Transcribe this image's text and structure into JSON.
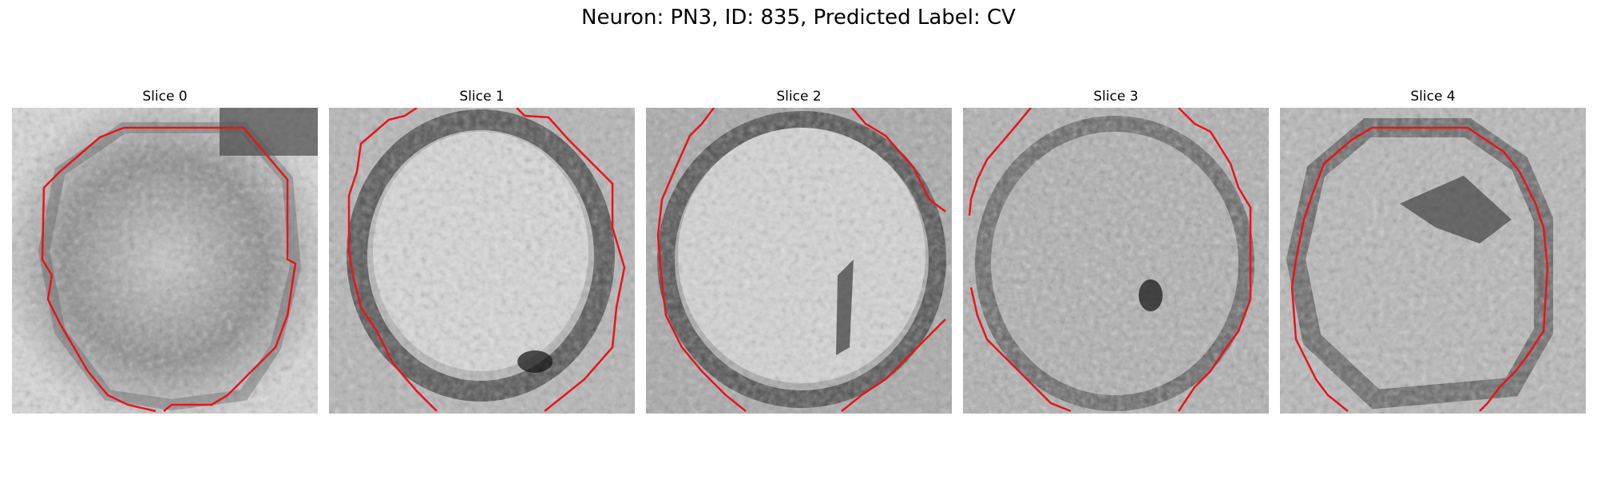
{
  "figure": {
    "title": "Neuron: PN3, ID: 835, Predicted Label: CV",
    "contour_color": "#e8141b",
    "colormap": "grayscale"
  },
  "panels": [
    {
      "title": "Slice 0"
    },
    {
      "title": "Slice 1"
    },
    {
      "title": "Slice 2"
    },
    {
      "title": "Slice 3"
    },
    {
      "title": "Slice 4"
    }
  ]
}
